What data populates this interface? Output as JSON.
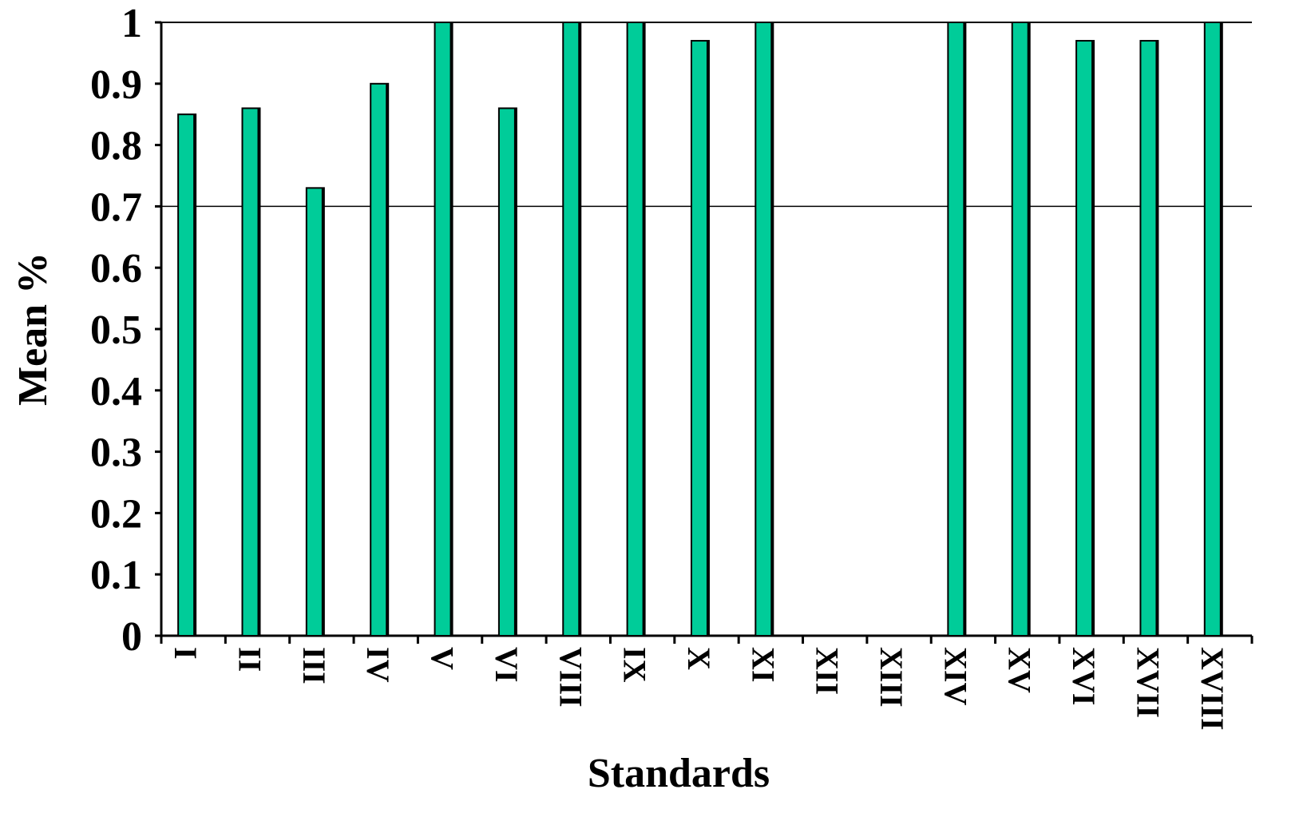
{
  "chart_data": {
    "type": "bar",
    "title": "",
    "xlabel": "Standards",
    "ylabel": "Mean %",
    "categories": [
      "I",
      "II",
      "III",
      "IV",
      "V",
      "VI",
      "VIII",
      "IX",
      "X",
      "XI",
      "XII",
      "XIII",
      "XIV",
      "XV",
      "XVI",
      "XVII",
      "XVIII"
    ],
    "values": [
      0.85,
      0.86,
      0.73,
      0.9,
      1.0,
      0.86,
      1.0,
      1.0,
      0.97,
      1.0,
      0,
      0,
      1.0,
      1.0,
      0.97,
      0.97,
      1.0
    ],
    "ylim": [
      0,
      1
    ],
    "yticks": [
      "0",
      "0.1",
      "0.2",
      "0.3",
      "0.4",
      "0.5",
      "0.6",
      "0.7",
      "0.8",
      "0.9",
      "1"
    ],
    "reference_line": 0.7,
    "grid": false,
    "legend": "none",
    "colors": {
      "bar": "#00cc99",
      "bar_outline": "#000000",
      "axis": "#000000",
      "background": "#ffffff"
    }
  }
}
